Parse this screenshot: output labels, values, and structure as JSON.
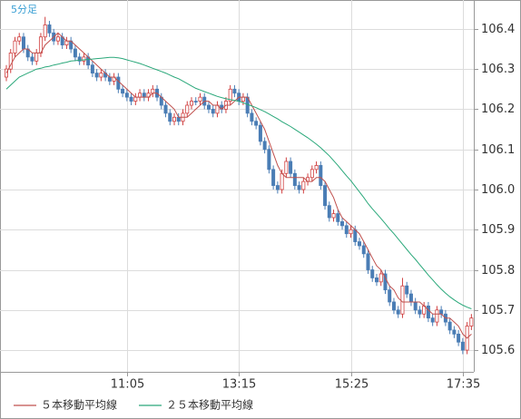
{
  "chart_data": {
    "type": "candlestick",
    "title": "5分足",
    "categories": [
      null,
      null,
      null,
      null,
      null,
      null,
      null,
      null,
      null,
      null,
      null,
      null,
      null,
      null,
      null,
      null,
      null,
      null,
      null,
      null,
      null,
      null,
      null,
      null,
      null,
      null,
      null,
      null,
      "11:05",
      null,
      null,
      null,
      null,
      null,
      null,
      null,
      null,
      null,
      null,
      null,
      null,
      null,
      null,
      null,
      null,
      null,
      null,
      null,
      null,
      null,
      null,
      null,
      null,
      null,
      "13:15",
      null,
      null,
      null,
      null,
      null,
      null,
      null,
      null,
      null,
      null,
      null,
      null,
      null,
      null,
      null,
      null,
      null,
      null,
      null,
      null,
      null,
      null,
      null,
      null,
      null,
      "15:25",
      null,
      null,
      null,
      null,
      null,
      null,
      null,
      null,
      null,
      null,
      null,
      null,
      null,
      null,
      null,
      null,
      null,
      null,
      null,
      null,
      null,
      null,
      null,
      null,
      null,
      "17:35",
      null,
      null
    ],
    "open": [
      106.28,
      106.3,
      106.34,
      106.37,
      106.38,
      106.35,
      106.33,
      106.32,
      106.34,
      106.38,
      106.41,
      106.39,
      106.37,
      106.38,
      106.36,
      106.37,
      106.35,
      106.33,
      106.32,
      106.33,
      106.31,
      106.29,
      106.28,
      106.29,
      106.28,
      106.27,
      106.28,
      106.25,
      106.24,
      106.23,
      106.22,
      106.23,
      106.24,
      106.23,
      106.24,
      106.25,
      106.23,
      106.21,
      106.19,
      106.17,
      106.18,
      106.17,
      106.19,
      106.21,
      106.22,
      106.22,
      106.23,
      106.21,
      106.2,
      106.19,
      106.21,
      106.2,
      106.22,
      106.25,
      106.24,
      106.22,
      106.23,
      106.19,
      106.17,
      106.16,
      106.12,
      106.1,
      106.05,
      106.01,
      106.0,
      106.04,
      106.07,
      106.04,
      106.01,
      106.0,
      106.02,
      106.03,
      106.05,
      106.06,
      106.01,
      105.96,
      105.93,
      105.94,
      105.92,
      105.91,
      105.89,
      105.9,
      105.87,
      105.86,
      105.84,
      105.8,
      105.78,
      105.77,
      105.79,
      105.75,
      105.72,
      105.7,
      105.69,
      105.76,
      105.74,
      105.72,
      105.7,
      105.69,
      105.71,
      105.68,
      105.67,
      105.7,
      105.69,
      105.67,
      105.65,
      105.64,
      105.62,
      105.6,
      105.66
    ],
    "high": [
      106.31,
      106.35,
      106.38,
      106.39,
      106.39,
      106.36,
      106.34,
      106.35,
      106.39,
      106.43,
      106.42,
      106.4,
      106.39,
      106.39,
      106.38,
      106.38,
      106.36,
      106.34,
      106.34,
      106.34,
      106.32,
      106.3,
      106.3,
      106.3,
      106.29,
      106.29,
      106.29,
      106.26,
      106.25,
      106.24,
      106.24,
      106.25,
      106.25,
      106.25,
      106.26,
      106.26,
      106.24,
      106.22,
      106.2,
      106.19,
      106.19,
      106.2,
      106.22,
      106.23,
      106.23,
      106.24,
      106.24,
      106.22,
      106.21,
      106.22,
      106.22,
      106.23,
      106.26,
      106.26,
      106.25,
      106.24,
      106.24,
      106.2,
      106.18,
      106.17,
      106.13,
      106.11,
      106.06,
      106.02,
      106.05,
      106.08,
      106.08,
      106.05,
      106.02,
      106.03,
      106.04,
      106.06,
      106.07,
      106.07,
      106.02,
      105.97,
      105.95,
      105.95,
      105.93,
      105.92,
      105.91,
      105.91,
      105.88,
      105.87,
      105.85,
      105.81,
      105.79,
      105.8,
      105.8,
      105.76,
      105.73,
      105.71,
      105.78,
      105.77,
      105.75,
      105.73,
      105.71,
      105.72,
      105.72,
      105.69,
      105.71,
      105.71,
      105.7,
      105.68,
      105.66,
      105.65,
      105.63,
      105.67,
      105.69
    ],
    "low": [
      106.27,
      106.29,
      106.33,
      106.36,
      106.34,
      106.32,
      106.31,
      106.31,
      106.33,
      106.37,
      106.38,
      106.36,
      106.36,
      106.35,
      106.35,
      106.34,
      106.32,
      106.31,
      106.31,
      106.3,
      106.28,
      106.27,
      106.27,
      106.27,
      106.26,
      106.26,
      106.24,
      106.23,
      106.22,
      106.21,
      106.21,
      106.22,
      106.22,
      106.22,
      106.23,
      106.22,
      106.2,
      106.18,
      106.16,
      106.16,
      106.16,
      106.16,
      106.18,
      106.2,
      106.21,
      106.21,
      106.2,
      106.19,
      106.18,
      106.18,
      106.19,
      106.19,
      106.21,
      106.23,
      106.21,
      106.21,
      106.18,
      106.16,
      106.15,
      106.11,
      106.09,
      106.04,
      106.0,
      105.99,
      105.99,
      106.03,
      106.03,
      106.0,
      105.99,
      105.99,
      106.01,
      106.02,
      106.04,
      106.0,
      105.95,
      105.92,
      105.92,
      105.91,
      105.9,
      105.88,
      105.88,
      105.86,
      105.85,
      105.83,
      105.79,
      105.77,
      105.76,
      105.76,
      105.74,
      105.71,
      105.69,
      105.68,
      105.68,
      105.73,
      105.71,
      105.69,
      105.68,
      105.68,
      105.67,
      105.66,
      105.66,
      105.68,
      105.66,
      105.64,
      105.63,
      105.61,
      105.59,
      105.59,
      105.65
    ],
    "close": [
      106.3,
      106.34,
      106.37,
      106.38,
      106.35,
      106.33,
      106.32,
      106.34,
      106.38,
      106.41,
      106.39,
      106.37,
      106.38,
      106.36,
      106.37,
      106.35,
      106.33,
      106.32,
      106.33,
      106.31,
      106.29,
      106.28,
      106.29,
      106.28,
      106.27,
      106.28,
      106.25,
      106.24,
      106.23,
      106.22,
      106.23,
      106.24,
      106.23,
      106.24,
      106.25,
      106.23,
      106.21,
      106.19,
      106.17,
      106.18,
      106.17,
      106.19,
      106.21,
      106.22,
      106.22,
      106.23,
      106.21,
      106.2,
      106.19,
      106.21,
      106.2,
      106.22,
      106.25,
      106.24,
      106.22,
      106.23,
      106.19,
      106.17,
      106.16,
      106.12,
      106.1,
      106.05,
      106.01,
      106.0,
      106.04,
      106.07,
      106.04,
      106.01,
      106.0,
      106.02,
      106.03,
      106.05,
      106.06,
      106.01,
      105.96,
      105.93,
      105.94,
      105.92,
      105.91,
      105.89,
      105.9,
      105.87,
      105.86,
      105.84,
      105.8,
      105.78,
      105.77,
      105.79,
      105.75,
      105.72,
      105.7,
      105.69,
      105.76,
      105.74,
      105.72,
      105.7,
      105.69,
      105.71,
      105.68,
      105.67,
      105.7,
      105.69,
      105.67,
      105.65,
      105.64,
      105.62,
      105.6,
      105.66,
      105.68
    ],
    "up_color": "#d04040",
    "down_color": "#4a7db5",
    "series": [
      {
        "name": "５本移動平均線",
        "color": "#c0504d",
        "values": [
          106.29,
          106.31,
          106.33,
          106.34,
          106.35,
          106.35,
          106.34,
          106.34,
          106.34,
          106.36,
          106.37,
          106.38,
          106.39,
          106.38,
          106.37,
          106.37,
          106.36,
          106.35,
          106.34,
          106.33,
          106.32,
          106.31,
          106.3,
          106.29,
          106.28,
          106.28,
          106.27,
          106.26,
          106.25,
          106.24,
          106.23,
          106.23,
          106.23,
          106.23,
          106.24,
          106.24,
          106.23,
          106.22,
          106.21,
          106.2,
          106.18,
          106.18,
          106.18,
          106.19,
          106.2,
          106.21,
          106.22,
          106.22,
          106.21,
          106.21,
          106.2,
          106.21,
          106.21,
          106.22,
          106.23,
          106.23,
          106.23,
          106.21,
          106.19,
          106.17,
          106.15,
          106.12,
          106.09,
          106.06,
          106.04,
          106.03,
          106.03,
          106.03,
          106.03,
          106.03,
          106.02,
          106.02,
          106.03,
          106.03,
          106.02,
          106.0,
          105.98,
          105.95,
          105.93,
          105.92,
          105.91,
          105.9,
          105.89,
          105.87,
          105.85,
          105.83,
          105.81,
          105.8,
          105.78,
          105.76,
          105.75,
          105.73,
          105.72,
          105.72,
          105.72,
          105.72,
          105.72,
          105.71,
          105.7,
          105.69,
          105.69,
          105.69,
          105.68,
          105.68,
          105.67,
          105.66,
          105.64,
          105.63,
          105.64
        ]
      },
      {
        "name": "２５本移動平均線",
        "color": "#2aa87a",
        "values": [
          106.25,
          106.26,
          106.27,
          106.28,
          106.285,
          106.29,
          106.295,
          106.3,
          106.302,
          106.305,
          106.307,
          106.31,
          106.312,
          106.315,
          106.317,
          106.32,
          106.321,
          106.322,
          106.323,
          106.324,
          106.325,
          106.326,
          106.327,
          106.328,
          106.329,
          106.329,
          106.328,
          106.326,
          106.323,
          106.32,
          106.317,
          106.314,
          106.31,
          106.306,
          106.302,
          106.298,
          106.294,
          106.29,
          106.285,
          106.28,
          106.276,
          106.27,
          106.264,
          106.258,
          106.252,
          106.248,
          106.244,
          106.24,
          106.236,
          106.232,
          106.229,
          106.226,
          106.224,
          106.222,
          106.22,
          106.216,
          106.212,
          106.208,
          106.204,
          106.199,
          106.194,
          106.188,
          106.182,
          106.176,
          106.169,
          106.163,
          106.157,
          106.15,
          106.143,
          106.136,
          106.129,
          106.121,
          106.113,
          106.104,
          106.094,
          106.084,
          106.072,
          106.06,
          106.047,
          106.034,
          106.022,
          106.008,
          105.994,
          105.98,
          105.965,
          105.952,
          105.94,
          105.928,
          105.915,
          105.902,
          105.89,
          105.877,
          105.864,
          105.851,
          105.838,
          105.826,
          105.813,
          105.8,
          105.787,
          105.775,
          105.763,
          105.752,
          105.742,
          105.733,
          105.725,
          105.718,
          105.712,
          105.707,
          105.703
        ]
      }
    ],
    "ylim": [
      105.546,
      106.472
    ],
    "yticks": [
      105.6,
      105.7,
      105.8,
      105.9,
      {
        "value": 106,
        "label": "106.0"
      },
      106.1,
      106.2,
      106.3,
      106.4
    ],
    "grid": true
  }
}
